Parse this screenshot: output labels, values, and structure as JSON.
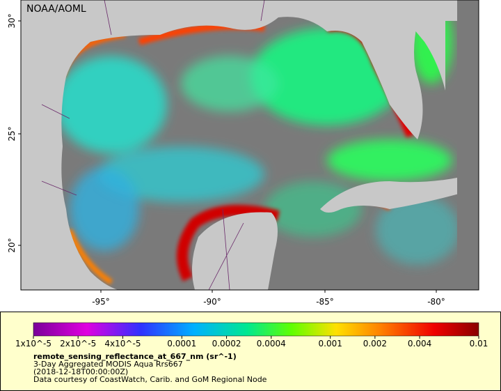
{
  "map": {
    "title": "NOAA/AOML",
    "lat_ticks": [
      "30°",
      "25°",
      "20°"
    ],
    "lon_ticks": [
      "-95°",
      "-90°",
      "-85°",
      "-80°"
    ]
  },
  "colorbar": {
    "labels": [
      "1x10^-5",
      "2x10^-5",
      "4x10^-5",
      "0.0001",
      "0.0002",
      "0.0004",
      "0.001",
      "0.002",
      "0.004",
      "0.01"
    ]
  },
  "caption": {
    "variable": "remote_sensing_reflectance_at_667_nm (sr^-1)",
    "lines": [
      "3-Day Aggregated MODIS Aqua Rrs667",
      "(2018-12-18T00:00:00Z)",
      "Data courtesy of CoastWatch, Carib. and GoM Regional Node"
    ]
  }
}
